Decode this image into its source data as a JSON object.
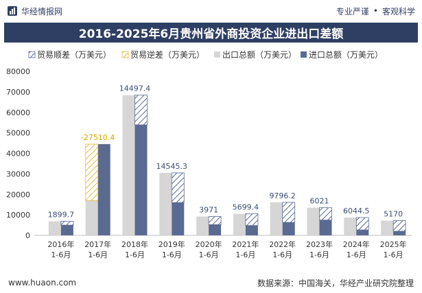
{
  "header": {
    "brand": "华经情报网",
    "slogan_left": "专业严谨",
    "slogan_sep": "•",
    "slogan_right": "客观科学"
  },
  "colors": {
    "export": "#d6d6d6",
    "import": "#5b6a91",
    "surplus": "#5b6a91",
    "deficit": "#e8b939",
    "label_blue": "#3c4d73",
    "label_yellow": "#d9a400",
    "title_bg": "#2f3f63"
  },
  "footer": {
    "website": "www.huaon.com",
    "source": "数据来源：中国海关，华经产业研究院整理"
  },
  "chart_data": {
    "type": "bar",
    "title": "2016-2025年6月贵州省外商投资企业进出口差额",
    "legend": [
      "贸易顺差（万美元）",
      "贸易逆差（万美元）",
      "出口总额（万美元）",
      "进口总额（万美元）"
    ],
    "categories": [
      [
        "2016年",
        "1-6月"
      ],
      [
        "2017年",
        "1-6月"
      ],
      [
        "2018年",
        "1-6月"
      ],
      [
        "2019年",
        "1-6月"
      ],
      [
        "2020年",
        "1-6月"
      ],
      [
        "2021年",
        "1-6月"
      ],
      [
        "2022年",
        "1-6月"
      ],
      [
        "2023年",
        "1-6月"
      ],
      [
        "2024年",
        "1-6月"
      ],
      [
        "2025年",
        "1-6月"
      ]
    ],
    "series": [
      {
        "name": "出口总额（万美元）",
        "values": [
          6900,
          17000,
          68400,
          30500,
          9200,
          10500,
          16100,
          13500,
          8700,
          7200
        ]
      },
      {
        "name": "进口总额（万美元）",
        "values": [
          5000,
          44500,
          53900,
          16000,
          5229,
          4801,
          6304,
          7479,
          2656,
          2030
        ]
      }
    ],
    "balance": {
      "values": [
        1899.7,
        -27510.4,
        14497.4,
        14545.3,
        3971,
        5699.4,
        9796.2,
        6021,
        6044.5,
        5170
      ],
      "labels": [
        "1899.7",
        "-27510.4",
        "14497.4",
        "14545.3",
        "3971",
        "5699.4",
        "9796.2",
        "6021",
        "6044.5",
        "5170"
      ]
    },
    "ylim": [
      0,
      80000
    ],
    "yticks": [
      0,
      10000,
      20000,
      30000,
      40000,
      50000,
      60000,
      70000,
      80000
    ],
    "xlabel": "",
    "ylabel": ""
  }
}
